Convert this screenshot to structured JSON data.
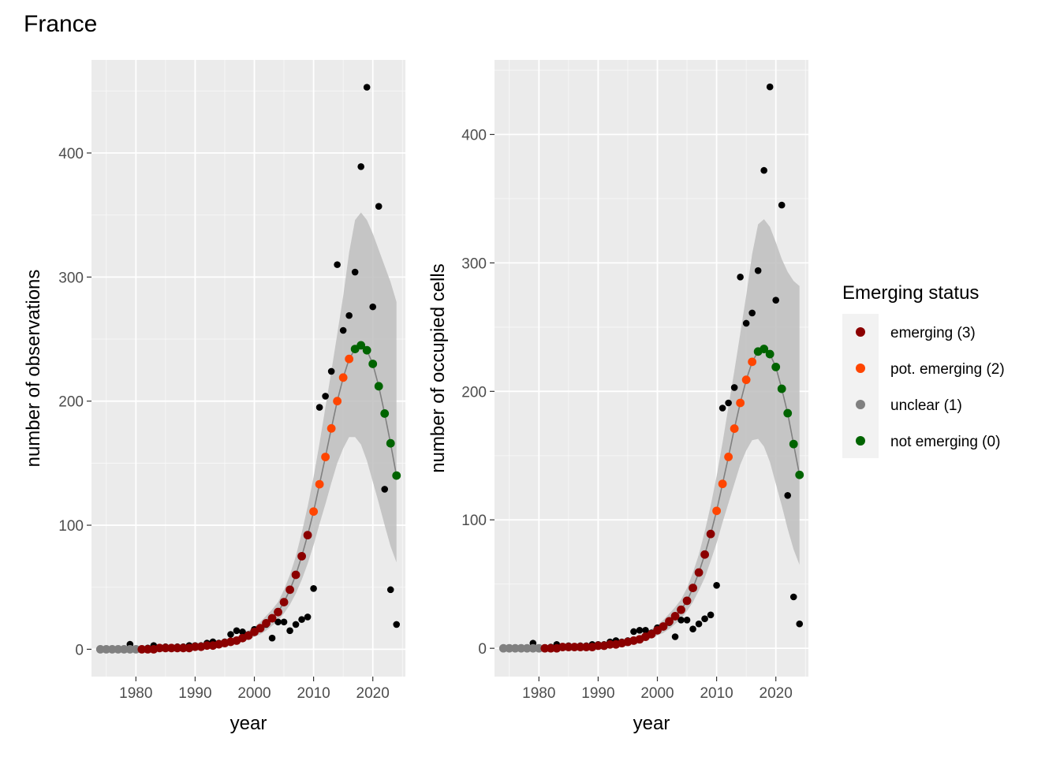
{
  "title": "France",
  "colors": {
    "panel_bg": "#EBEBEB",
    "grid_major": "#FFFFFF",
    "ribbon": "#BEBEBE",
    "line": "#808080",
    "raw_points": "#000000",
    "status": {
      "3": "#8B0000",
      "2": "#FF4500",
      "1": "#808080",
      "0": "#006400"
    }
  },
  "legend": {
    "title": "Emerging status",
    "items": [
      {
        "label": "emerging (3)",
        "status": 3,
        "color": "#8B0000"
      },
      {
        "label": "pot. emerging (2)",
        "status": 2,
        "color": "#FF4500"
      },
      {
        "label": "unclear (1)",
        "status": 1,
        "color": "#808080"
      },
      {
        "label": "not emerging (0)",
        "status": 0,
        "color": "#006400"
      }
    ]
  },
  "chart_data": [
    {
      "type": "scatter",
      "xlabel": "year",
      "ylabel": "number of observations",
      "xlim": [
        1972.5,
        2025.5
      ],
      "ylim": [
        -22,
        475
      ],
      "xticks": [
        1980,
        1990,
        2000,
        2010,
        2020
      ],
      "yticks": [
        0,
        100,
        200,
        300,
        400
      ],
      "raw_observations": {
        "x": [
          1974,
          1975,
          1976,
          1977,
          1978,
          1979,
          1980,
          1981,
          1982,
          1983,
          1984,
          1985,
          1986,
          1987,
          1988,
          1989,
          1990,
          1991,
          1992,
          1993,
          1994,
          1995,
          1996,
          1997,
          1998,
          1999,
          2000,
          2001,
          2002,
          2003,
          2004,
          2005,
          2006,
          2007,
          2008,
          2009,
          2010,
          2011,
          2012,
          2013,
          2014,
          2015,
          2016,
          2017,
          2018,
          2019,
          2020,
          2021,
          2022,
          2023,
          2024
        ],
        "y": [
          0,
          0,
          0,
          0,
          0,
          4,
          0,
          0,
          1,
          3,
          1,
          2,
          1,
          2,
          2,
          3,
          3,
          3,
          5,
          6,
          5,
          6,
          12,
          15,
          14,
          12,
          16,
          17,
          20,
          9,
          22,
          22,
          15,
          20,
          24,
          26,
          49,
          195,
          204,
          224,
          310,
          257,
          269,
          304,
          389,
          453,
          276,
          357,
          129,
          48,
          20
        ]
      },
      "fitted": {
        "x": [
          1974,
          1975,
          1976,
          1977,
          1978,
          1979,
          1980,
          1981,
          1982,
          1983,
          1984,
          1985,
          1986,
          1987,
          1988,
          1989,
          1990,
          1991,
          1992,
          1993,
          1994,
          1995,
          1996,
          1997,
          1998,
          1999,
          2000,
          2001,
          2002,
          2003,
          2004,
          2005,
          2006,
          2007,
          2008,
          2009,
          2010,
          2011,
          2012,
          2013,
          2014,
          2015,
          2016,
          2017,
          2018,
          2019,
          2020,
          2021,
          2022,
          2023,
          2024
        ],
        "y": [
          0,
          0,
          0,
          0,
          0,
          0,
          0,
          0,
          0,
          0,
          1,
          1,
          1,
          1,
          1,
          1,
          2,
          2,
          3,
          3,
          4,
          5,
          6,
          7,
          9,
          11,
          14,
          17,
          21,
          25,
          30,
          38,
          48,
          60,
          75,
          92,
          111,
          133,
          155,
          178,
          200,
          219,
          234,
          242,
          245,
          241,
          230,
          212,
          190,
          166,
          140
        ],
        "lower": [
          0,
          0,
          0,
          0,
          0,
          0,
          0,
          0,
          0,
          0,
          0,
          0,
          0,
          0,
          0,
          0,
          1,
          1,
          1,
          2,
          2,
          3,
          4,
          5,
          6,
          8,
          10,
          12,
          15,
          19,
          23,
          29,
          36,
          45,
          56,
          69,
          84,
          101,
          117,
          134,
          150,
          162,
          171,
          171,
          165,
          152,
          135,
          118,
          100,
          83,
          70
        ],
        "upper": [
          0,
          0,
          0,
          0,
          0,
          0,
          0,
          0,
          1,
          1,
          1,
          1,
          2,
          2,
          2,
          3,
          3,
          4,
          4,
          5,
          6,
          7,
          8,
          10,
          12,
          15,
          18,
          22,
          27,
          32,
          38,
          48,
          60,
          75,
          94,
          115,
          139,
          166,
          195,
          224,
          254,
          285,
          320,
          346,
          352,
          346,
          335,
          322,
          309,
          296,
          280
        ],
        "status": [
          1,
          1,
          1,
          1,
          1,
          1,
          1,
          3,
          3,
          3,
          3,
          3,
          3,
          3,
          3,
          3,
          3,
          3,
          3,
          3,
          3,
          3,
          3,
          3,
          3,
          3,
          3,
          3,
          3,
          3,
          3,
          3,
          3,
          3,
          3,
          3,
          2,
          2,
          2,
          2,
          2,
          2,
          2,
          0,
          0,
          0,
          0,
          0,
          0,
          0,
          0
        ]
      }
    },
    {
      "type": "scatter",
      "xlabel": "year",
      "ylabel": "number of occupied cells",
      "xlim": [
        1972.5,
        2025.5
      ],
      "ylim": [
        -22,
        458
      ],
      "xticks": [
        1980,
        1990,
        2000,
        2010,
        2020
      ],
      "yticks": [
        0,
        100,
        200,
        300,
        400
      ],
      "raw_observations": {
        "x": [
          1974,
          1975,
          1976,
          1977,
          1978,
          1979,
          1980,
          1981,
          1982,
          1983,
          1984,
          1985,
          1986,
          1987,
          1988,
          1989,
          1990,
          1991,
          1992,
          1993,
          1994,
          1995,
          1996,
          1997,
          1998,
          1999,
          2000,
          2001,
          2002,
          2003,
          2004,
          2005,
          2006,
          2007,
          2008,
          2009,
          2010,
          2011,
          2012,
          2013,
          2014,
          2015,
          2016,
          2017,
          2018,
          2019,
          2020,
          2021,
          2022,
          2023,
          2024
        ],
        "y": [
          0,
          0,
          0,
          0,
          0,
          4,
          0,
          0,
          1,
          3,
          1,
          2,
          1,
          2,
          2,
          3,
          3,
          3,
          5,
          6,
          5,
          6,
          13,
          14,
          14,
          12,
          16,
          17,
          20,
          9,
          22,
          22,
          15,
          19,
          23,
          26,
          49,
          187,
          191,
          203,
          289,
          253,
          261,
          294,
          372,
          437,
          271,
          345,
          119,
          40,
          19
        ]
      },
      "fitted": {
        "x": [
          1974,
          1975,
          1976,
          1977,
          1978,
          1979,
          1980,
          1981,
          1982,
          1983,
          1984,
          1985,
          1986,
          1987,
          1988,
          1989,
          1990,
          1991,
          1992,
          1993,
          1994,
          1995,
          1996,
          1997,
          1998,
          1999,
          2000,
          2001,
          2002,
          2003,
          2004,
          2005,
          2006,
          2007,
          2008,
          2009,
          2010,
          2011,
          2012,
          2013,
          2014,
          2015,
          2016,
          2017,
          2018,
          2019,
          2020,
          2021,
          2022,
          2023,
          2024
        ],
        "y": [
          0,
          0,
          0,
          0,
          0,
          0,
          0,
          0,
          0,
          0,
          1,
          1,
          1,
          1,
          1,
          1,
          2,
          2,
          3,
          3,
          4,
          5,
          6,
          7,
          9,
          11,
          14,
          17,
          21,
          25,
          30,
          37,
          47,
          59,
          73,
          89,
          107,
          128,
          149,
          171,
          191,
          209,
          223,
          231,
          233,
          229,
          219,
          202,
          183,
          159,
          135
        ],
        "lower": [
          0,
          0,
          0,
          0,
          0,
          0,
          0,
          0,
          0,
          0,
          0,
          0,
          0,
          0,
          0,
          0,
          1,
          1,
          1,
          2,
          2,
          3,
          4,
          5,
          6,
          8,
          10,
          12,
          15,
          19,
          23,
          29,
          36,
          45,
          55,
          68,
          82,
          98,
          113,
          128,
          143,
          154,
          162,
          163,
          157,
          145,
          128,
          111,
          93,
          77,
          65
        ],
        "upper": [
          0,
          0,
          0,
          0,
          0,
          0,
          0,
          0,
          1,
          1,
          1,
          1,
          2,
          2,
          2,
          3,
          3,
          4,
          4,
          5,
          6,
          7,
          8,
          10,
          12,
          15,
          18,
          22,
          27,
          32,
          38,
          47,
          59,
          73,
          91,
          111,
          134,
          160,
          188,
          216,
          245,
          275,
          307,
          330,
          334,
          328,
          316,
          303,
          293,
          286,
          282
        ],
        "status": [
          1,
          1,
          1,
          1,
          1,
          1,
          1,
          3,
          3,
          3,
          3,
          3,
          3,
          3,
          3,
          3,
          3,
          3,
          3,
          3,
          3,
          3,
          3,
          3,
          3,
          3,
          3,
          3,
          3,
          3,
          3,
          3,
          3,
          3,
          3,
          3,
          2,
          2,
          2,
          2,
          2,
          2,
          2,
          0,
          0,
          0,
          0,
          0,
          0,
          0,
          0
        ]
      }
    }
  ]
}
